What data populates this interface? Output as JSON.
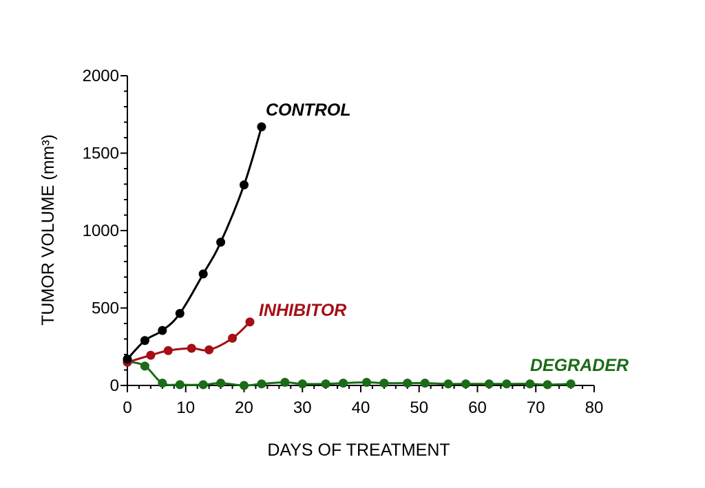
{
  "chart_data": {
    "type": "line",
    "title": "",
    "xlabel": "DAYS OF TREATMENT",
    "ylabel": "TUMOR VOLUME (mm³)",
    "xlim": [
      0,
      80
    ],
    "ylim": [
      0,
      2000
    ],
    "x_ticks": [
      "0",
      "10",
      "20",
      "30",
      "40",
      "50",
      "60",
      "70",
      "80"
    ],
    "y_ticks": [
      "0",
      "500",
      "1000",
      "1500",
      "2000"
    ],
    "grid": false,
    "legend": "inline labels",
    "series": [
      {
        "name": "CONTROL",
        "color": "#000000",
        "x": [
          0,
          3,
          6,
          9,
          13,
          16,
          20,
          23
        ],
        "y": [
          170,
          290,
          355,
          465,
          720,
          925,
          1295,
          1670
        ]
      },
      {
        "name": "INHIBITOR",
        "color": "#A50F15",
        "x": [
          0,
          4,
          7,
          11,
          14,
          18,
          21
        ],
        "y": [
          150,
          195,
          225,
          240,
          230,
          305,
          410
        ]
      },
      {
        "name": "DEGRADER",
        "color": "#1B6B18",
        "x": [
          0,
          3,
          6,
          9,
          13,
          16,
          20,
          23,
          27,
          30,
          34,
          37,
          41,
          44,
          48,
          51,
          55,
          58,
          62,
          65,
          69,
          72,
          76
        ],
        "y": [
          155,
          125,
          15,
          5,
          5,
          15,
          0,
          10,
          20,
          10,
          10,
          15,
          20,
          15,
          15,
          15,
          10,
          10,
          10,
          10,
          10,
          5,
          10
        ]
      }
    ]
  }
}
